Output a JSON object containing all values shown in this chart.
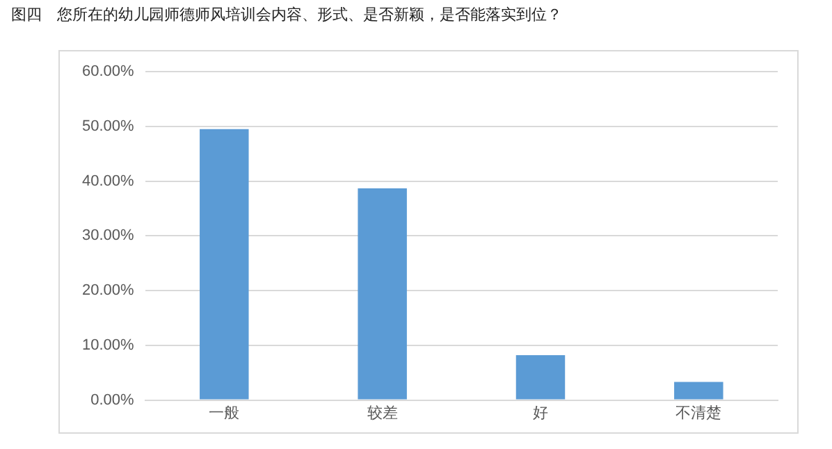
{
  "chart_data": {
    "type": "bar",
    "title": "图四　您所在的幼儿园师德师风培训会内容、形式、是否新颖，是否能落实到位？",
    "categories": [
      "一般",
      "较差",
      "好",
      "不清楚"
    ],
    "values": [
      49.5,
      38.7,
      8.2,
      3.3
    ],
    "color": "#5b9bd5",
    "ylim": [
      0,
      60
    ],
    "yticks": [
      {
        "value": 0,
        "label": "0.00%"
      },
      {
        "value": 10,
        "label": "10.00%"
      },
      {
        "value": 20,
        "label": "20.00%"
      },
      {
        "value": 30,
        "label": "30.00%"
      },
      {
        "value": 40,
        "label": "40.00%"
      },
      {
        "value": 50,
        "label": "50.00%"
      },
      {
        "value": 60,
        "label": "60.00%"
      }
    ],
    "grid": "y",
    "legend": false
  }
}
